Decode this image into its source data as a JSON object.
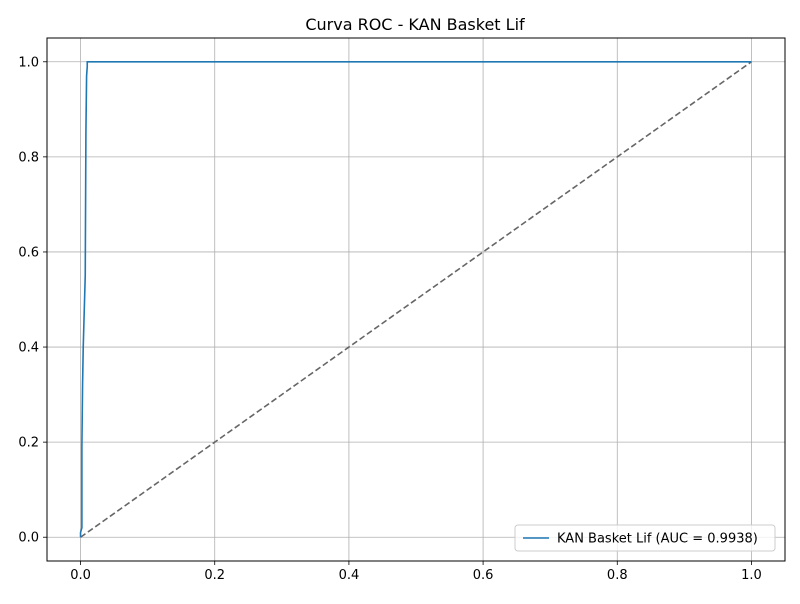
{
  "chart_data": {
    "type": "line",
    "title": "Curva ROC - KAN Basket Lif",
    "xlabel": "",
    "ylabel": "",
    "xlim": [
      -0.05,
      1.05
    ],
    "ylim": [
      -0.05,
      1.05
    ],
    "x_ticks": [
      0.0,
      0.2,
      0.4,
      0.6,
      0.8,
      1.0
    ],
    "x_tick_labels": [
      "0.0",
      "0.2",
      "0.4",
      "0.6",
      "0.8",
      "1.0"
    ],
    "y_ticks": [
      0.0,
      0.2,
      0.4,
      0.6,
      0.8,
      1.0
    ],
    "y_tick_labels": [
      "0.0",
      "0.2",
      "0.4",
      "0.6",
      "0.8",
      "1.0"
    ],
    "grid": true,
    "legend_position": "lower-right",
    "series": [
      {
        "name": "KAN Basket Lif (AUC = 0.9938)",
        "color": "#1f77b4",
        "style": "solid",
        "x": [
          0.0,
          0.0,
          0.002,
          0.002,
          0.003,
          0.004,
          0.005,
          0.006,
          0.007,
          0.008,
          0.009,
          0.01,
          0.01,
          1.0
        ],
        "y": [
          0.0,
          0.01,
          0.02,
          0.19,
          0.32,
          0.4,
          0.45,
          0.5,
          0.55,
          0.85,
          0.97,
          0.99,
          1.0,
          1.0
        ]
      },
      {
        "name": "",
        "color": "#666666",
        "style": "dashed",
        "x": [
          0.0,
          1.0
        ],
        "y": [
          0.0,
          1.0
        ]
      }
    ]
  }
}
